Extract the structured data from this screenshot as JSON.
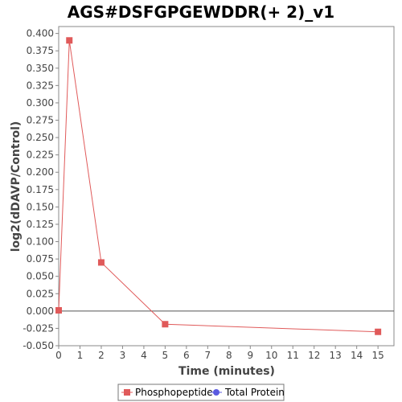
{
  "chart_data": {
    "type": "line",
    "title": "AGS#DSFGPGEWDDR(+ 2)_v1",
    "xlabel": "Time (minutes)",
    "ylabel": "log2(dDAVP/Control)",
    "xlim": [
      0,
      15.75
    ],
    "ylim": [
      -0.05,
      0.41
    ],
    "xticks": [
      0,
      1,
      2,
      3,
      4,
      5,
      6,
      7,
      8,
      9,
      10,
      11,
      12,
      13,
      14,
      15
    ],
    "yticks": [
      -0.05,
      -0.025,
      0.0,
      0.025,
      0.05,
      0.075,
      0.1,
      0.125,
      0.15,
      0.175,
      0.2,
      0.225,
      0.25,
      0.275,
      0.3,
      0.325,
      0.35,
      0.375,
      0.4
    ],
    "ytick_labels": [
      "-0.050",
      "-0.025",
      "0.000",
      "0.025",
      "0.050",
      "0.075",
      "0.100",
      "0.125",
      "0.150",
      "0.175",
      "0.200",
      "0.225",
      "0.250",
      "0.275",
      "0.300",
      "0.325",
      "0.350",
      "0.375",
      "0.400"
    ],
    "zero_line": true,
    "grid": false,
    "legend_position": "bottom-center",
    "series": [
      {
        "name": "Phosphopeptide",
        "color": "#e05a5a",
        "marker": "square",
        "x": [
          0,
          0.5,
          2,
          5,
          15
        ],
        "y": [
          0.001,
          0.39,
          0.07,
          -0.019,
          -0.03
        ]
      },
      {
        "name": "Total Protein",
        "color": "#5a5ae0",
        "marker": "circle",
        "x": [],
        "y": []
      }
    ]
  }
}
